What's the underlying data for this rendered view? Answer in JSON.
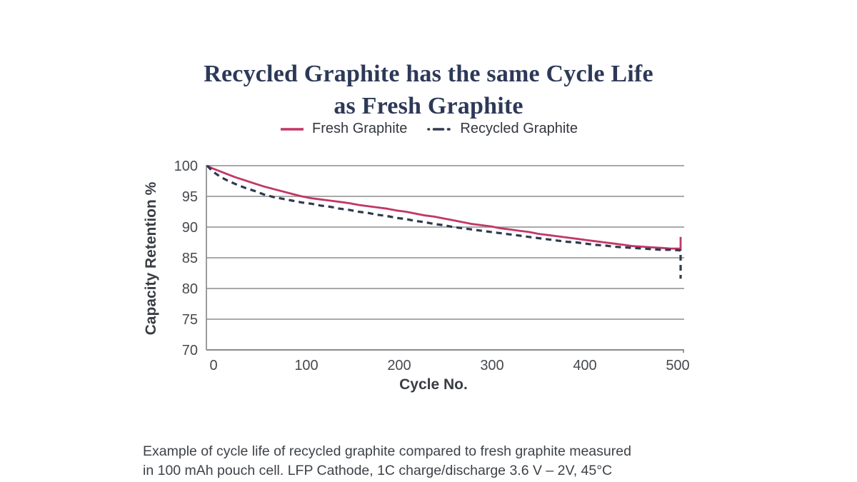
{
  "title": {
    "line1": "Recycled Graphite has the same Cycle Life",
    "line2": "as Fresh Graphite"
  },
  "legend": {
    "items": [
      {
        "label": "Fresh Graphite"
      },
      {
        "label": "Recycled Graphite"
      }
    ]
  },
  "caption": {
    "line1": "Example of cycle life of recycled graphite compared to fresh graphite measured",
    "line2": "in 100 mAh pouch cell. LFP Cathode, 1C charge/discharge 3.6 V – 2V, 45°C"
  },
  "colors": {
    "fresh": "#c13765",
    "recycled": "#2f3a50",
    "title": "#2d3958",
    "grid": "#9d9d9d",
    "axis": "#8a8a8a",
    "tick_text": "#46494f"
  },
  "chart_data": {
    "type": "line",
    "title": "Recycled Graphite has the same Cycle Life as Fresh Graphite",
    "xlabel": "Cycle No.",
    "ylabel": "Capacity Retention %",
    "xlim": [
      0,
      500
    ],
    "ylim": [
      70,
      100
    ],
    "x_ticks": [
      0,
      100,
      200,
      300,
      400,
      500
    ],
    "y_ticks": [
      100,
      95,
      90,
      85,
      80,
      75,
      70
    ],
    "grid": true,
    "legend_position": "top",
    "series": [
      {
        "name": "Fresh Graphite",
        "style": "solid",
        "color": "#c13765",
        "points": [
          [
            0,
            100
          ],
          [
            5,
            99.6
          ],
          [
            10,
            99.3
          ],
          [
            15,
            99.0
          ],
          [
            20,
            98.7
          ],
          [
            30,
            98.1
          ],
          [
            40,
            97.6
          ],
          [
            50,
            97.1
          ],
          [
            60,
            96.6
          ],
          [
            70,
            96.2
          ],
          [
            80,
            95.8
          ],
          [
            90,
            95.4
          ],
          [
            100,
            95.0
          ],
          [
            110,
            94.7
          ],
          [
            120,
            94.5
          ],
          [
            130,
            94.3
          ],
          [
            140,
            94.1
          ],
          [
            150,
            93.9
          ],
          [
            160,
            93.6
          ],
          [
            170,
            93.4
          ],
          [
            180,
            93.2
          ],
          [
            190,
            93.0
          ],
          [
            200,
            92.7
          ],
          [
            210,
            92.5
          ],
          [
            220,
            92.2
          ],
          [
            230,
            91.9
          ],
          [
            240,
            91.7
          ],
          [
            250,
            91.4
          ],
          [
            260,
            91.1
          ],
          [
            270,
            90.8
          ],
          [
            280,
            90.5
          ],
          [
            290,
            90.3
          ],
          [
            300,
            90.1
          ],
          [
            310,
            89.8
          ],
          [
            320,
            89.6
          ],
          [
            330,
            89.4
          ],
          [
            340,
            89.2
          ],
          [
            350,
            88.9
          ],
          [
            360,
            88.7
          ],
          [
            370,
            88.5
          ],
          [
            380,
            88.3
          ],
          [
            390,
            88.1
          ],
          [
            400,
            87.9
          ],
          [
            410,
            87.7
          ],
          [
            420,
            87.5
          ],
          [
            430,
            87.3
          ],
          [
            440,
            87.1
          ],
          [
            450,
            86.9
          ],
          [
            460,
            86.8
          ],
          [
            470,
            86.7
          ],
          [
            480,
            86.6
          ],
          [
            490,
            86.5
          ],
          [
            500,
            86.5
          ],
          [
            500,
            88.4
          ]
        ]
      },
      {
        "name": "Recycled Graphite",
        "style": "dashed",
        "color": "#2f3a50",
        "points": [
          [
            0,
            100
          ],
          [
            5,
            99.2
          ],
          [
            10,
            98.6
          ],
          [
            15,
            98.1
          ],
          [
            20,
            97.7
          ],
          [
            30,
            97.0
          ],
          [
            40,
            96.4
          ],
          [
            50,
            95.9
          ],
          [
            60,
            95.3
          ],
          [
            70,
            94.9
          ],
          [
            80,
            94.6
          ],
          [
            90,
            94.3
          ],
          [
            100,
            94.0
          ],
          [
            110,
            93.8
          ],
          [
            120,
            93.5
          ],
          [
            130,
            93.3
          ],
          [
            140,
            93.0
          ],
          [
            150,
            92.8
          ],
          [
            160,
            92.5
          ],
          [
            170,
            92.3
          ],
          [
            180,
            92.0
          ],
          [
            190,
            91.8
          ],
          [
            200,
            91.5
          ],
          [
            210,
            91.3
          ],
          [
            220,
            91.0
          ],
          [
            230,
            90.8
          ],
          [
            240,
            90.5
          ],
          [
            250,
            90.3
          ],
          [
            260,
            90.0
          ],
          [
            270,
            89.8
          ],
          [
            280,
            89.6
          ],
          [
            290,
            89.4
          ],
          [
            300,
            89.2
          ],
          [
            310,
            89.0
          ],
          [
            320,
            88.8
          ],
          [
            330,
            88.6
          ],
          [
            340,
            88.4
          ],
          [
            350,
            88.2
          ],
          [
            360,
            88.0
          ],
          [
            370,
            87.8
          ],
          [
            380,
            87.6
          ],
          [
            390,
            87.5
          ],
          [
            400,
            87.3
          ],
          [
            410,
            87.1
          ],
          [
            420,
            87.0
          ],
          [
            430,
            86.8
          ],
          [
            440,
            86.7
          ],
          [
            450,
            86.6
          ],
          [
            460,
            86.5
          ],
          [
            470,
            86.4
          ],
          [
            480,
            86.3
          ],
          [
            490,
            86.3
          ],
          [
            500,
            86.2
          ],
          [
            500,
            81.6
          ]
        ]
      }
    ]
  }
}
